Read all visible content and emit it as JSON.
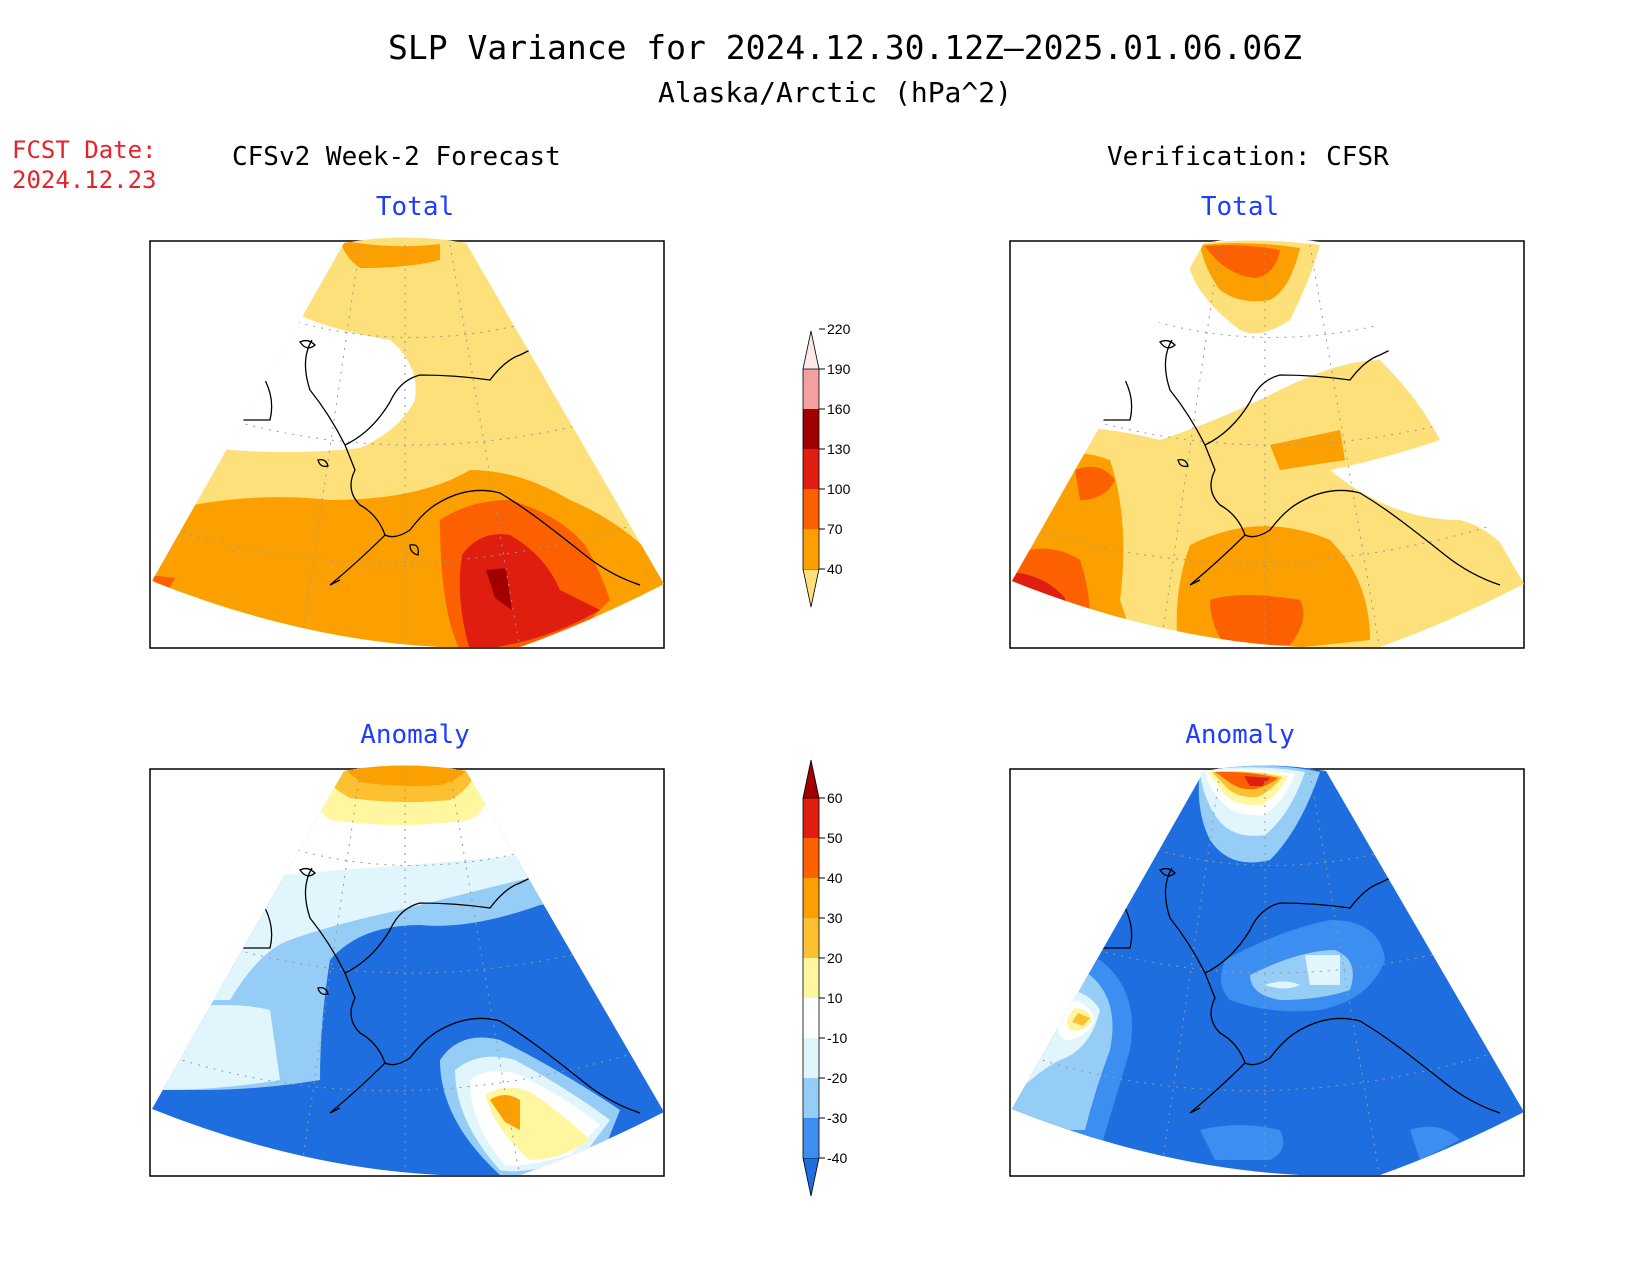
{
  "title": {
    "line1": "SLP Variance for 2024.12.30.12Z–2025.01.06.06Z",
    "line2": "Alaska/Arctic (hPa^2)"
  },
  "fcst_date": {
    "label": "FCST Date:",
    "value": "2024.12.23"
  },
  "columns": {
    "left": "CFSv2 Week-2 Forecast",
    "right": "Verification: CFSR"
  },
  "panels": {
    "forecast_total": "Total",
    "verification_total": "Total",
    "forecast_anomaly": "Anomaly",
    "verification_anomaly": "Anomaly"
  },
  "colorbars": {
    "total": {
      "levels": [
        "40",
        "70",
        "100",
        "130",
        "160",
        "190",
        "220"
      ],
      "colors": [
        "#fde07a",
        "#fba000",
        "#fc6000",
        "#e01e10",
        "#a00000",
        "#f4a0a0",
        "#fde8e8"
      ]
    },
    "anomaly": {
      "levels": [
        "-40",
        "-30",
        "-20",
        "-10",
        "10",
        "20",
        "30",
        "40",
        "50",
        "60"
      ],
      "colors": [
        "#1e6ee0",
        "#3c8ef0",
        "#96cdf6",
        "#e0f6fc",
        "#ffffff",
        "#fff6a0",
        "#fcc030",
        "#fba000",
        "#fc6000",
        "#e01e10",
        "#a00000"
      ]
    }
  },
  "map_colors": {
    "white": "#ffffff",
    "yellow": "#fde07a",
    "orange": "#fba000",
    "dark_orange": "#fc6000",
    "red": "#e01e10",
    "dark_red": "#a00000",
    "pale_yellow": "#fff6a0",
    "light_orange": "#fcc030",
    "pale_blue": "#e0f6fc",
    "light_blue": "#96cdf6",
    "mid_blue": "#3c8ef0",
    "deep_blue": "#1e6ee0"
  }
}
